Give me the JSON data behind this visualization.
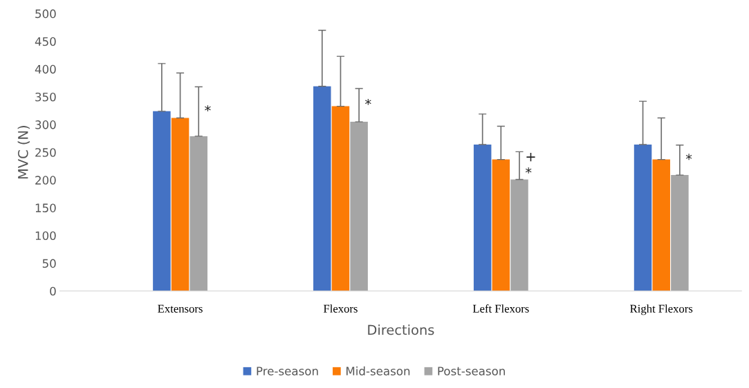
{
  "chart_data": {
    "type": "bar",
    "xlabel": "Directions",
    "ylabel": "MVC (N)",
    "categories": [
      "Extensors",
      "Flexors",
      "Left Flexors",
      "Right Flexors"
    ],
    "series": [
      {
        "name": "Pre-season",
        "color": "#4472c4",
        "values": [
          324,
          369,
          264,
          264
        ],
        "errors": [
          [
            324,
            410
          ],
          [
            369,
            470
          ],
          [
            264,
            319
          ],
          [
            264,
            342
          ]
        ]
      },
      {
        "name": "Mid-season",
        "color": "#fb7b06",
        "values": [
          312,
          333,
          237,
          237
        ],
        "errors": [
          [
            312,
            393
          ],
          [
            333,
            423
          ],
          [
            237,
            297
          ],
          [
            237,
            312
          ]
        ]
      },
      {
        "name": "Post-season",
        "color": "#a5a5a5",
        "values": [
          279,
          305,
          201,
          209
        ],
        "errors": [
          [
            279,
            368
          ],
          [
            305,
            365
          ],
          [
            201,
            251
          ],
          [
            209,
            263
          ]
        ],
        "value_labels": [
          "*",
          "*",
          "+\n*",
          "*"
        ]
      }
    ],
    "ylim": [
      0,
      500
    ],
    "yticks": [
      0,
      50,
      100,
      150,
      200,
      250,
      300,
      350,
      400,
      450,
      500
    ],
    "grid": false,
    "legend": "bottom"
  }
}
